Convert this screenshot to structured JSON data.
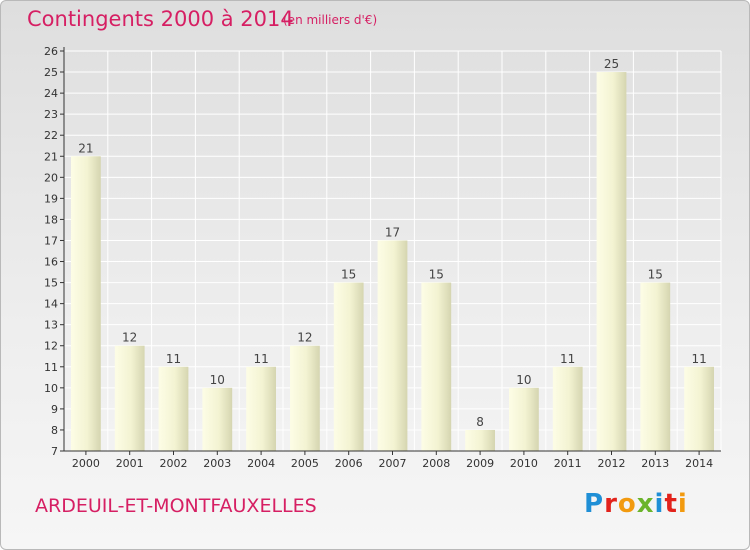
{
  "chart_data": {
    "type": "bar",
    "title": "Contingents 2000 à 2014",
    "subtitle": "(en milliers d'€)",
    "categories": [
      "2000",
      "2001",
      "2002",
      "2003",
      "2004",
      "2005",
      "2006",
      "2007",
      "2008",
      "2009",
      "2010",
      "2011",
      "2012",
      "2013",
      "2014"
    ],
    "values": [
      21,
      12,
      11,
      10,
      11,
      12,
      15,
      17,
      15,
      8,
      10,
      11,
      25,
      15,
      11
    ],
    "ylim": [
      7,
      26
    ],
    "yticks": [
      7,
      8,
      9,
      10,
      11,
      12,
      13,
      14,
      15,
      16,
      17,
      18,
      19,
      20,
      21,
      22,
      23,
      24,
      25,
      26
    ],
    "grid": true,
    "xlabel": "",
    "ylabel": ""
  },
  "footer": {
    "commune": "ARDEUIL-ET-MONTFAUXELLES",
    "logo_letters": [
      "P",
      "r",
      "o",
      "x",
      "i",
      "t",
      "i"
    ],
    "logo_colors": [
      "#1f8fd6",
      "#e2221b",
      "#f29a0f",
      "#6bb42b",
      "#1f8fd6",
      "#e2221b",
      "#f29a0f"
    ]
  },
  "colors": {
    "title": "#d61f63",
    "bar_light": "#fbfbdf",
    "bar_dark": "#d8d8b4",
    "grid": "#ffffff",
    "axis": "#333333"
  }
}
